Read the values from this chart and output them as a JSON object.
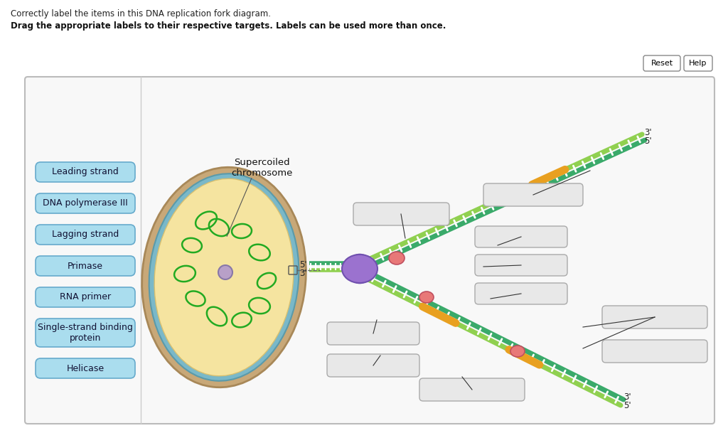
{
  "title_line1": "Correctly label the items in the DNA replication fork diagram.",
  "title_line2": "Drag the appropriate labels to their respective targets. Labels can be used more than once.",
  "bg_color": "#ffffff",
  "button_color": "#aaddee",
  "button_border": "#66aacc",
  "supercoiled_label": "Supercoiled\nchromosome",
  "strand_dark": "#3aaa6a",
  "strand_light": "#90d050",
  "rna_color": "#e8a020",
  "helicase_color": "#9b72cf",
  "ssb_color": "#e87878",
  "cell_outer": "#c8a878",
  "cell_mid": "#dfc090",
  "cell_inner": "#f2db8a",
  "empty_box_fill": "#e8e8e8",
  "empty_box_border": "#aaaaaa",
  "panel_fill": "#f8f8f8",
  "panel_border": "#bbbbbb",
  "label_buttons": [
    "Leading strand",
    "DNA polymerase III",
    "Lagging strand",
    "Primase",
    "RNA primer",
    "Single-strand binding\nprotein",
    "Helicase"
  ]
}
